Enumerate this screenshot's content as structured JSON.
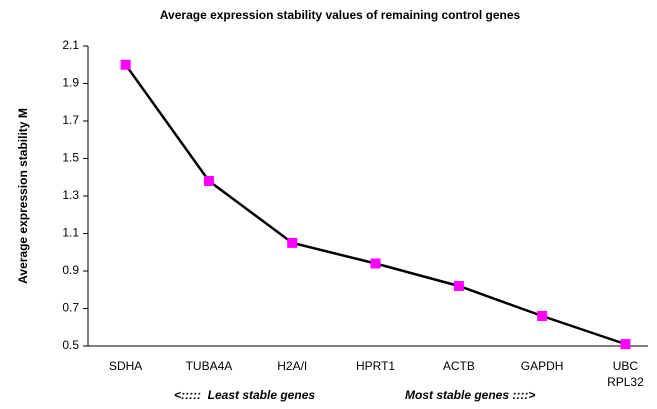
{
  "chart_data": {
    "type": "line",
    "title": "Average expression stability values of remaining control genes",
    "y_label": "Average expression stability M",
    "annotations": [
      "<:::::  Least stable genes",
      "Most stable genes ::::>"
    ],
    "categories": [
      "SDHA",
      "TUBA4A",
      "H2A/I",
      "HPRT1",
      "ACTB",
      "GAPDH",
      "UBC RPL32"
    ],
    "values": [
      2.0,
      1.38,
      1.05,
      0.94,
      0.82,
      0.66,
      0.51
    ],
    "color": "#000000",
    "marker_color": "#ff00ff",
    "ylim": [
      0.5,
      2.1
    ],
    "yticks": [
      0.5,
      0.7,
      0.9,
      1.1,
      1.3,
      1.5,
      1.7,
      1.9,
      2.1
    ],
    "grid": false
  }
}
